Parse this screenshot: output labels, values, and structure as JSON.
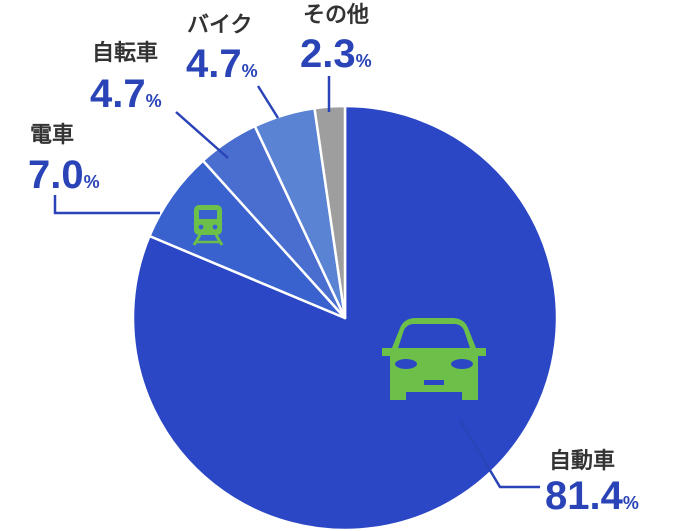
{
  "chart_data": {
    "type": "pie",
    "categories": [
      "自動車",
      "電車",
      "自転車",
      "バイク",
      "その他"
    ],
    "values": [
      81.4,
      7.0,
      4.7,
      4.7,
      2.3
    ],
    "value_labels": [
      "81.4",
      "7.0",
      "4.7",
      "4.7",
      "2.3"
    ],
    "unit": "%",
    "colors": [
      "#2b47c6",
      "#3a62cf",
      "#4a6ed0",
      "#5a83d3",
      "#9e9e9e"
    ],
    "icon_color": "#6cc04a",
    "icons": [
      "car-icon",
      "train-icon"
    ],
    "legend": "none",
    "grid": false
  }
}
